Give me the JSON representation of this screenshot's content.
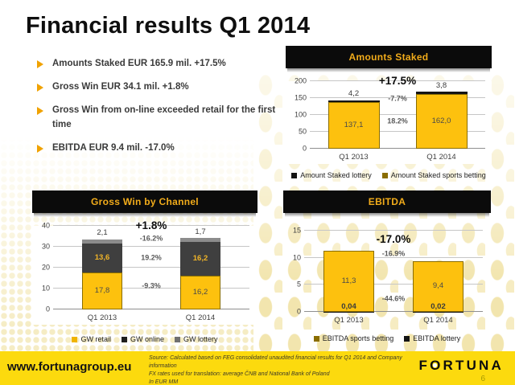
{
  "slide": {
    "title": "Financial results Q1 2014",
    "bullets": [
      "Amounts Staked EUR 165.9 mil. +17.5%",
      "Gross Win EUR 34.1 mil. +1.8%",
      "Gross Win from on-line exceeded retail for the first time",
      "EBITDA EUR 9.4 mil. -17.0%"
    ],
    "footer": {
      "website": "www.fortunagroup.eu",
      "source_lines": [
        "Source: Calculated based on FEG consolidated unaudited financial results for Q1 2014 and Company information",
        "FX rates used for translation: average ČNB and National Bank of Poland",
        "In EUR MM"
      ],
      "logo_text": "FORTUNA",
      "page_number": "6"
    }
  },
  "colors": {
    "brand_yellow": "#fcda0e",
    "bar_yellow": "#fdc10e",
    "bar_yellow_border": "#8a6d00",
    "header_gold_text": "#f2ac1a",
    "dark_segment": "#3f3f3f",
    "gray_segment": "#8c8c8c",
    "black_segment": "#141414",
    "bullet_gold": "#f0a202"
  },
  "chart_data": [
    {
      "type": "bar",
      "stacked": true,
      "title": "Amounts Staked",
      "big_change_label": "+17.5%",
      "categories": [
        "Q1 2013",
        "Q1 2014"
      ],
      "ylim": [
        0,
        200
      ],
      "yticks": [
        200,
        150,
        100,
        50,
        0
      ],
      "series": [
        {
          "name": "Amount Staked sports betting",
          "values": [
            137.1,
            162.0
          ],
          "value_labels": [
            "137,1",
            "162,0"
          ],
          "color": "#fdc10e",
          "border": "#8a6d00",
          "label_placement": "center",
          "label_color": "#4a4a4a"
        },
        {
          "name": "Amount Staked lottery",
          "values": [
            4.2,
            3.8
          ],
          "value_labels": [
            "4,2",
            "3,8"
          ],
          "color": "#141414",
          "label_placement": "above",
          "label_color": "#3a3a3a"
        }
      ],
      "annotations": [
        {
          "text": "-7.7%",
          "y": 148
        },
        {
          "text": "18.2%",
          "y": 80
        }
      ],
      "legend": [
        {
          "label": "Amount Staked lottery",
          "color": "#141414"
        },
        {
          "label": "Amount Staked sports betting",
          "color": "#8a6d00"
        }
      ]
    },
    {
      "type": "bar",
      "stacked": true,
      "title": "Gross Win by Channel",
      "big_change_label": "+1.8%",
      "categories": [
        "Q1 2013",
        "Q1 2014"
      ],
      "ylim": [
        0,
        40
      ],
      "yticks": [
        40,
        30,
        20,
        10,
        0
      ],
      "series": [
        {
          "name": "GW retail",
          "values": [
            17.8,
            16.2
          ],
          "value_labels": [
            "17,8",
            "16,2"
          ],
          "color": "#fdc10e",
          "border": "#8a6d00",
          "label_placement": "center",
          "label_color": "#4a4a4a"
        },
        {
          "name": "GW online",
          "values": [
            13.6,
            16.2
          ],
          "value_labels": [
            "13,6",
            "16,2"
          ],
          "color": "#3f3f3f",
          "label_placement": "center",
          "label_color": "#f0b428",
          "label_bold": true
        },
        {
          "name": "GW lottery",
          "values": [
            2.1,
            1.7
          ],
          "value_labels": [
            "2,1",
            "1,7"
          ],
          "color": "#8c8c8c",
          "label_placement": "above",
          "label_color": "#3a3a3a"
        }
      ],
      "annotations": [
        {
          "text": "-16.2%",
          "y": 34
        },
        {
          "text": "19.2%",
          "y": 24.5
        },
        {
          "text": "-9.3%",
          "y": 11
        }
      ],
      "legend": [
        {
          "label": "GW retail",
          "color": "#f0b400"
        },
        {
          "label": "GW online",
          "color": "#1f1f1f"
        },
        {
          "label": "GW lottery",
          "color": "#707070"
        }
      ]
    },
    {
      "type": "bar",
      "stacked": true,
      "title": "EBITDA",
      "big_change_label": "-17.0%",
      "categories": [
        "Q1 2013",
        "Q1 2014"
      ],
      "ylim": [
        0,
        15
      ],
      "yticks": [
        15,
        10,
        5,
        0
      ],
      "series": [
        {
          "name": "EBITDA lottery",
          "values": [
            0.04,
            0.02
          ],
          "value_labels": [
            "0,04",
            "0,02"
          ],
          "color": "#141414",
          "label_placement": "bottom",
          "label_color": "#3a3a3a"
        },
        {
          "name": "EBITDA sports betting",
          "values": [
            11.3,
            9.4
          ],
          "value_labels": [
            "11,3",
            "9,4"
          ],
          "color": "#fdc10e",
          "border": "#8a6d00",
          "label_placement": "center",
          "label_color": "#4a4a4a"
        }
      ],
      "annotations": [
        {
          "text": "-16.9%",
          "y": 10.7
        },
        {
          "text": "-44.6%",
          "y": 2.4
        }
      ],
      "legend": [
        {
          "label": "EBITDA sports betting",
          "color": "#8a6d00"
        },
        {
          "label": "EBITDA lottery",
          "color": "#141414"
        }
      ]
    }
  ]
}
